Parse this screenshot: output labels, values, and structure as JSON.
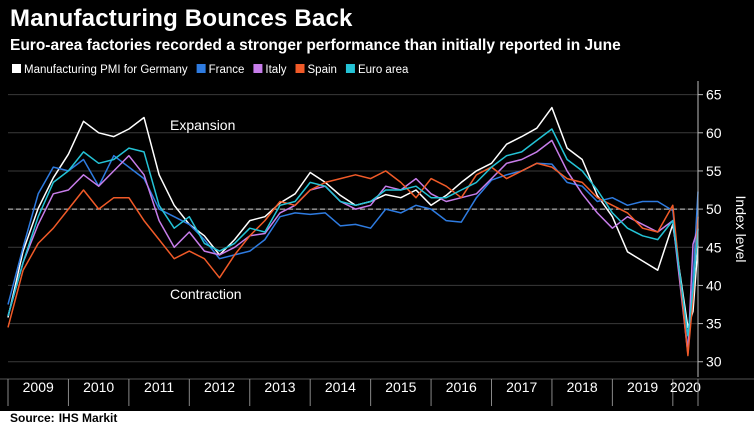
{
  "title": "Manufacturing Bounces Back",
  "subtitle": "Euro-area factories recorded a stronger performance than initially reported in June",
  "source_label": "Source:",
  "source_name": "IHS Markit",
  "annotations": {
    "upper": "Expansion",
    "lower": "Contraction"
  },
  "colors": {
    "background": "#000000",
    "text": "#ffffff",
    "grid": "#3a3a3a",
    "reference_line": "#d0d0d0"
  },
  "chart_data": {
    "type": "line",
    "title": "Manufacturing Bounces Back",
    "subtitle": "Euro-area factories recorded a stronger performance than initially reported in June",
    "xlabel": "",
    "ylabel": "Index level",
    "yticks": [
      30,
      35,
      40,
      45,
      50,
      55,
      60,
      65
    ],
    "xticks": [
      "2009",
      "2010",
      "2011",
      "2012",
      "2013",
      "2014",
      "2015",
      "2016",
      "2017",
      "2018",
      "2019",
      "2020"
    ],
    "xlim": [
      "2009-01",
      "2020-06"
    ],
    "ylim": [
      28,
      66
    ],
    "reference_line": 50,
    "grid": true,
    "legend_position": "top-left",
    "x_interval": "quarterly",
    "x": [
      "2009-01",
      "2009-04",
      "2009-07",
      "2009-10",
      "2010-01",
      "2010-04",
      "2010-07",
      "2010-10",
      "2011-01",
      "2011-04",
      "2011-07",
      "2011-10",
      "2012-01",
      "2012-04",
      "2012-07",
      "2012-10",
      "2013-01",
      "2013-04",
      "2013-07",
      "2013-10",
      "2014-01",
      "2014-04",
      "2014-07",
      "2014-10",
      "2015-01",
      "2015-04",
      "2015-07",
      "2015-10",
      "2016-01",
      "2016-04",
      "2016-07",
      "2016-10",
      "2017-01",
      "2017-04",
      "2017-07",
      "2017-10",
      "2018-01",
      "2018-04",
      "2018-07",
      "2018-10",
      "2019-01",
      "2019-04",
      "2019-07",
      "2019-10",
      "2020-01",
      "2020-04",
      "2020-05",
      "2020-06"
    ],
    "series": [
      {
        "name": "Manufacturing PMI for Germany",
        "color": "#ffffff",
        "values": [
          35.8,
          44.5,
          50.1,
          54.1,
          57.2,
          61.5,
          60.0,
          59.5,
          60.5,
          62.0,
          54.5,
          50.5,
          48.0,
          46.5,
          44.0,
          46.0,
          48.5,
          49.0,
          50.8,
          52.0,
          54.8,
          53.5,
          51.8,
          50.5,
          51.0,
          51.9,
          51.5,
          52.5,
          50.5,
          51.8,
          53.5,
          55.0,
          56.0,
          58.5,
          59.5,
          60.6,
          63.3,
          58.0,
          56.5,
          51.8,
          49.0,
          44.4,
          43.2,
          42.0,
          48.0,
          34.5,
          36.6,
          45.2
        ]
      },
      {
        "name": "France",
        "color": "#2e7be0",
        "values": [
          37.5,
          45.0,
          52.0,
          55.5,
          55.0,
          56.5,
          53.0,
          57.0,
          55.5,
          54.0,
          50.0,
          49.0,
          48.0,
          46.0,
          43.5,
          44.0,
          44.5,
          46.0,
          49.0,
          49.5,
          49.3,
          49.5,
          47.8,
          48.0,
          47.5,
          50.0,
          49.5,
          50.5,
          50.0,
          48.5,
          48.3,
          51.5,
          53.8,
          54.5,
          55.0,
          56.0,
          55.9,
          53.5,
          53.0,
          51.0,
          51.5,
          50.5,
          51.0,
          51.0,
          49.8,
          31.5,
          40.6,
          52.3
        ]
      },
      {
        "name": "Italy",
        "color": "#c77dea",
        "values": [
          36.0,
          43.0,
          48.0,
          52.0,
          52.5,
          54.5,
          53.0,
          55.0,
          57.0,
          54.5,
          48.5,
          45.0,
          47.0,
          44.5,
          44.0,
          45.0,
          46.5,
          46.8,
          49.5,
          50.5,
          52.5,
          53.0,
          51.0,
          50.0,
          50.5,
          53.0,
          52.5,
          54.0,
          52.0,
          51.0,
          51.5,
          52.0,
          54.0,
          56.0,
          56.5,
          57.5,
          59.0,
          55.0,
          52.0,
          49.5,
          47.5,
          49.0,
          48.0,
          47.0,
          48.5,
          31.1,
          45.4,
          47.5
        ]
      },
      {
        "name": "Spain",
        "color": "#f05a28",
        "values": [
          34.5,
          42.0,
          45.5,
          47.5,
          50.0,
          52.5,
          50.0,
          51.5,
          51.5,
          48.5,
          46.0,
          43.5,
          44.5,
          43.5,
          41.0,
          44.0,
          46.5,
          48.5,
          51.0,
          50.5,
          52.5,
          53.5,
          54.0,
          54.5,
          54.0,
          55.0,
          53.5,
          51.5,
          54.0,
          53.0,
          51.5,
          54.5,
          55.5,
          54.0,
          55.0,
          56.0,
          55.5,
          54.0,
          53.5,
          51.5,
          50.5,
          49.5,
          47.5,
          47.0,
          50.5,
          30.8,
          38.3,
          49.0
        ]
      },
      {
        "name": "Euro area",
        "color": "#24c3d6",
        "values": [
          36.0,
          43.0,
          49.0,
          53.5,
          55.0,
          57.5,
          56.0,
          56.5,
          58.0,
          57.5,
          50.5,
          47.5,
          49.0,
          45.5,
          44.5,
          45.5,
          47.5,
          47.0,
          50.5,
          51.0,
          53.5,
          53.0,
          51.0,
          50.5,
          51.0,
          52.5,
          52.5,
          53.0,
          51.5,
          51.5,
          52.5,
          53.5,
          55.5,
          57.0,
          57.5,
          59.0,
          60.5,
          56.5,
          55.0,
          52.5,
          49.5,
          47.5,
          46.5,
          46.0,
          48.5,
          33.4,
          39.4,
          47.4
        ]
      }
    ]
  }
}
